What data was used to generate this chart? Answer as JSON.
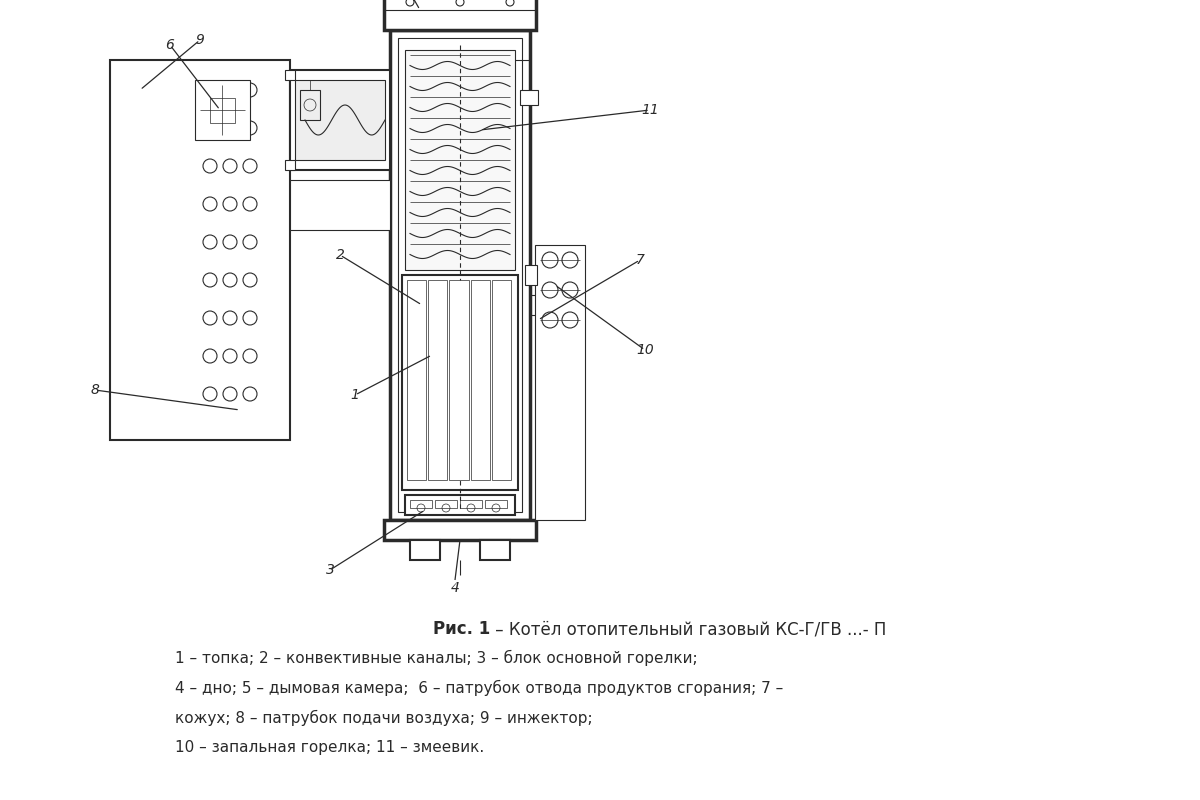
{
  "background_color": "#ffffff",
  "title_bold": "Рис. 1",
  "title_normal": " – Котёл отопительный газовый КС-Г/ГВ ...- П",
  "caption_line1": "1 – топка; 2 – конвективные каналы; 3 – блок основной горелки;",
  "caption_line2": "4 – дно; 5 – дымовая камера;  6 – патрубок отвода продуктов сгорания; 7 –",
  "caption_line3": "кожух; 8 – патрубок подачи воздуха; 9 – инжектор;",
  "caption_line4": "10 – запальная горелка; 11 – змеевик.",
  "line_color": "#2a2a2a",
  "label_color": "#2a2a2a",
  "fig_width": 12.0,
  "fig_height": 8.0
}
